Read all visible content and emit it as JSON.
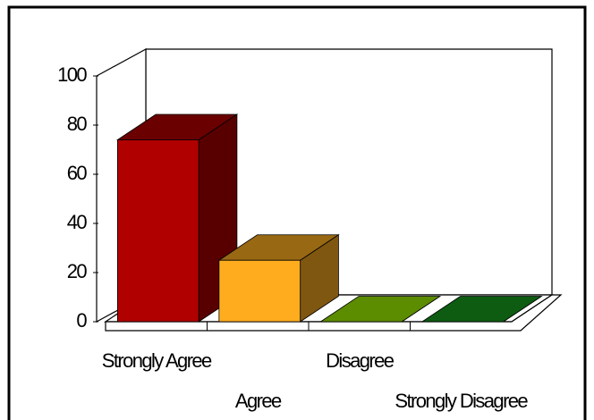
{
  "chart_data": {
    "type": "bar3d",
    "categories": [
      "Strongly Agree",
      "Agree",
      "Disagree",
      "Strongly Disagree"
    ],
    "values": [
      74,
      25,
      0,
      0
    ],
    "colors": [
      "#b00000",
      "#ffad1f",
      "#5c8c00",
      "#0d5c12"
    ],
    "ylim": [
      0,
      100
    ],
    "yticks": [
      0,
      20,
      40,
      60,
      80,
      100
    ]
  }
}
